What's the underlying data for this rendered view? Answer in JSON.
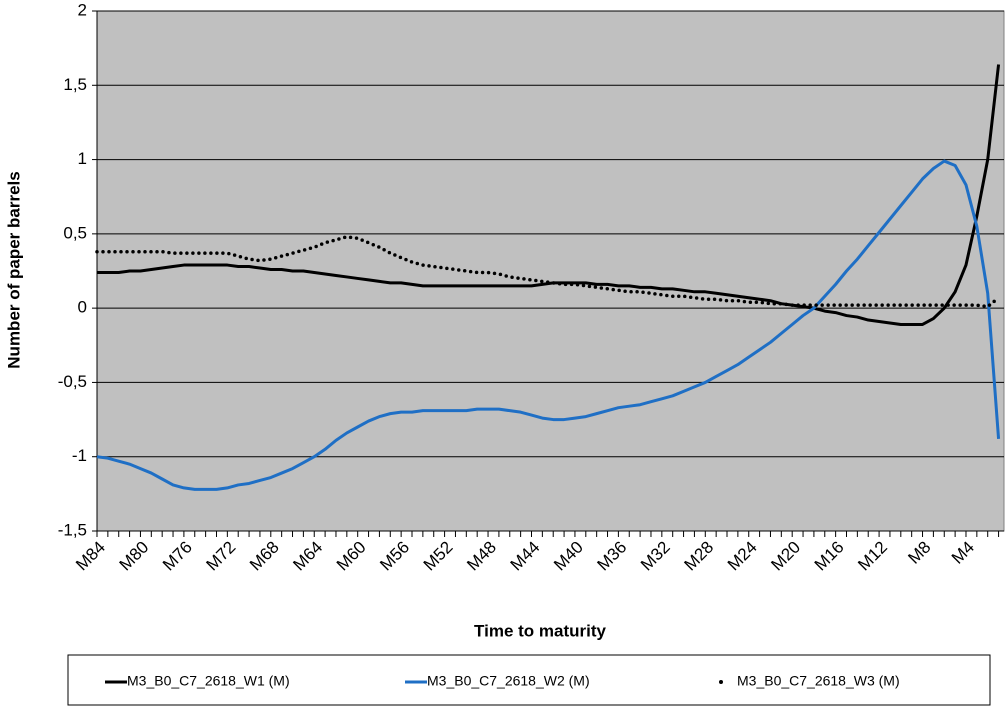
{
  "chart_data": {
    "type": "line",
    "x_label": "Time to maturity",
    "y_label": "Number of paper barrels",
    "categories": [
      "M84",
      null,
      null,
      null,
      "M80",
      null,
      null,
      null,
      "M76",
      null,
      null,
      null,
      "M72",
      null,
      null,
      null,
      "M68",
      null,
      null,
      null,
      "M64",
      null,
      null,
      null,
      "M60",
      null,
      null,
      null,
      "M56",
      null,
      null,
      null,
      "M52",
      null,
      null,
      null,
      "M48",
      null,
      null,
      null,
      "M44",
      null,
      null,
      null,
      "M40",
      null,
      null,
      null,
      "M36",
      null,
      null,
      null,
      "M32",
      null,
      null,
      null,
      "M28",
      null,
      null,
      null,
      "M24",
      null,
      null,
      null,
      "M20",
      null,
      null,
      null,
      "M16",
      null,
      null,
      null,
      "M12",
      null,
      null,
      null,
      "M8",
      null,
      null,
      null,
      "M4",
      null,
      null,
      null
    ],
    "ylim": [
      -1.5,
      2
    ],
    "yticks": [
      {
        "value": -1.5,
        "label": "-1,5"
      },
      -1,
      {
        "value": -0.5,
        "label": "-0,5"
      },
      0,
      {
        "value": 0.5,
        "label": "0,5"
      },
      1,
      {
        "value": 1.5,
        "label": "1,5"
      },
      2
    ],
    "grid": true,
    "legend": "bottom",
    "background": "#c0c0c0",
    "series": [
      {
        "name": "M3_B0_C7_2618_W1 (M)",
        "color": "#000000",
        "style": "solid",
        "values": [
          0.24,
          0.24,
          0.24,
          0.25,
          0.25,
          0.26,
          0.27,
          0.28,
          0.29,
          0.29,
          0.29,
          0.29,
          0.29,
          0.28,
          0.28,
          0.27,
          0.26,
          0.26,
          0.25,
          0.25,
          0.24,
          0.23,
          0.22,
          0.21,
          0.2,
          0.19,
          0.18,
          0.17,
          0.17,
          0.16,
          0.15,
          0.15,
          0.15,
          0.15,
          0.15,
          0.15,
          0.15,
          0.15,
          0.15,
          0.15,
          0.15,
          0.16,
          0.17,
          0.17,
          0.17,
          0.17,
          0.16,
          0.16,
          0.15,
          0.15,
          0.14,
          0.14,
          0.13,
          0.13,
          0.12,
          0.11,
          0.11,
          0.1,
          0.09,
          0.08,
          0.07,
          0.06,
          0.05,
          0.03,
          0.02,
          0.01,
          0.0,
          -0.02,
          -0.03,
          -0.05,
          -0.06,
          -0.08,
          -0.09,
          -0.1,
          -0.11,
          -0.11,
          -0.11,
          -0.07,
          0.0,
          0.11,
          0.29,
          0.62,
          1.0,
          1.64
        ]
      },
      {
        "name": "M3_B0_C7_2618_W2 (M)",
        "color": "#1f6fc5",
        "style": "solid",
        "values": [
          -1.0,
          -1.01,
          -1.03,
          -1.05,
          -1.08,
          -1.11,
          -1.15,
          -1.19,
          -1.21,
          -1.22,
          -1.22,
          -1.22,
          -1.21,
          -1.19,
          -1.18,
          -1.16,
          -1.14,
          -1.11,
          -1.08,
          -1.04,
          -1.0,
          -0.95,
          -0.89,
          -0.84,
          -0.8,
          -0.76,
          -0.73,
          -0.71,
          -0.7,
          -0.7,
          -0.69,
          -0.69,
          -0.69,
          -0.69,
          -0.69,
          -0.68,
          -0.68,
          -0.68,
          -0.69,
          -0.7,
          -0.72,
          -0.74,
          -0.75,
          -0.75,
          -0.74,
          -0.73,
          -0.71,
          -0.69,
          -0.67,
          -0.66,
          -0.65,
          -0.63,
          -0.61,
          -0.59,
          -0.56,
          -0.53,
          -0.5,
          -0.46,
          -0.42,
          -0.38,
          -0.33,
          -0.28,
          -0.23,
          -0.17,
          -0.11,
          -0.05,
          0.0,
          0.08,
          0.16,
          0.25,
          0.33,
          0.42,
          0.51,
          0.6,
          0.69,
          0.78,
          0.87,
          0.94,
          0.99,
          0.96,
          0.83,
          0.55,
          0.1,
          -0.88
        ]
      },
      {
        "name": "M3_B0_C7_2618_W3 (M)",
        "color": "#000000",
        "style": "dotted",
        "values": [
          0.38,
          0.38,
          0.38,
          0.38,
          0.38,
          0.38,
          0.38,
          0.37,
          0.37,
          0.37,
          0.37,
          0.37,
          0.37,
          0.35,
          0.33,
          0.32,
          0.33,
          0.35,
          0.37,
          0.39,
          0.41,
          0.44,
          0.46,
          0.48,
          0.47,
          0.44,
          0.41,
          0.37,
          0.34,
          0.31,
          0.29,
          0.28,
          0.27,
          0.26,
          0.25,
          0.24,
          0.24,
          0.23,
          0.21,
          0.2,
          0.19,
          0.18,
          0.17,
          0.16,
          0.16,
          0.15,
          0.14,
          0.13,
          0.12,
          0.11,
          0.11,
          0.1,
          0.09,
          0.08,
          0.08,
          0.07,
          0.06,
          0.06,
          0.05,
          0.05,
          0.04,
          0.04,
          0.03,
          0.03,
          0.02,
          0.02,
          0.02,
          0.02,
          0.02,
          0.02,
          0.02,
          0.02,
          0.02,
          0.02,
          0.02,
          0.02,
          0.02,
          0.02,
          0.02,
          0.02,
          0.02,
          0.02,
          0.01,
          0.07
        ]
      }
    ]
  }
}
